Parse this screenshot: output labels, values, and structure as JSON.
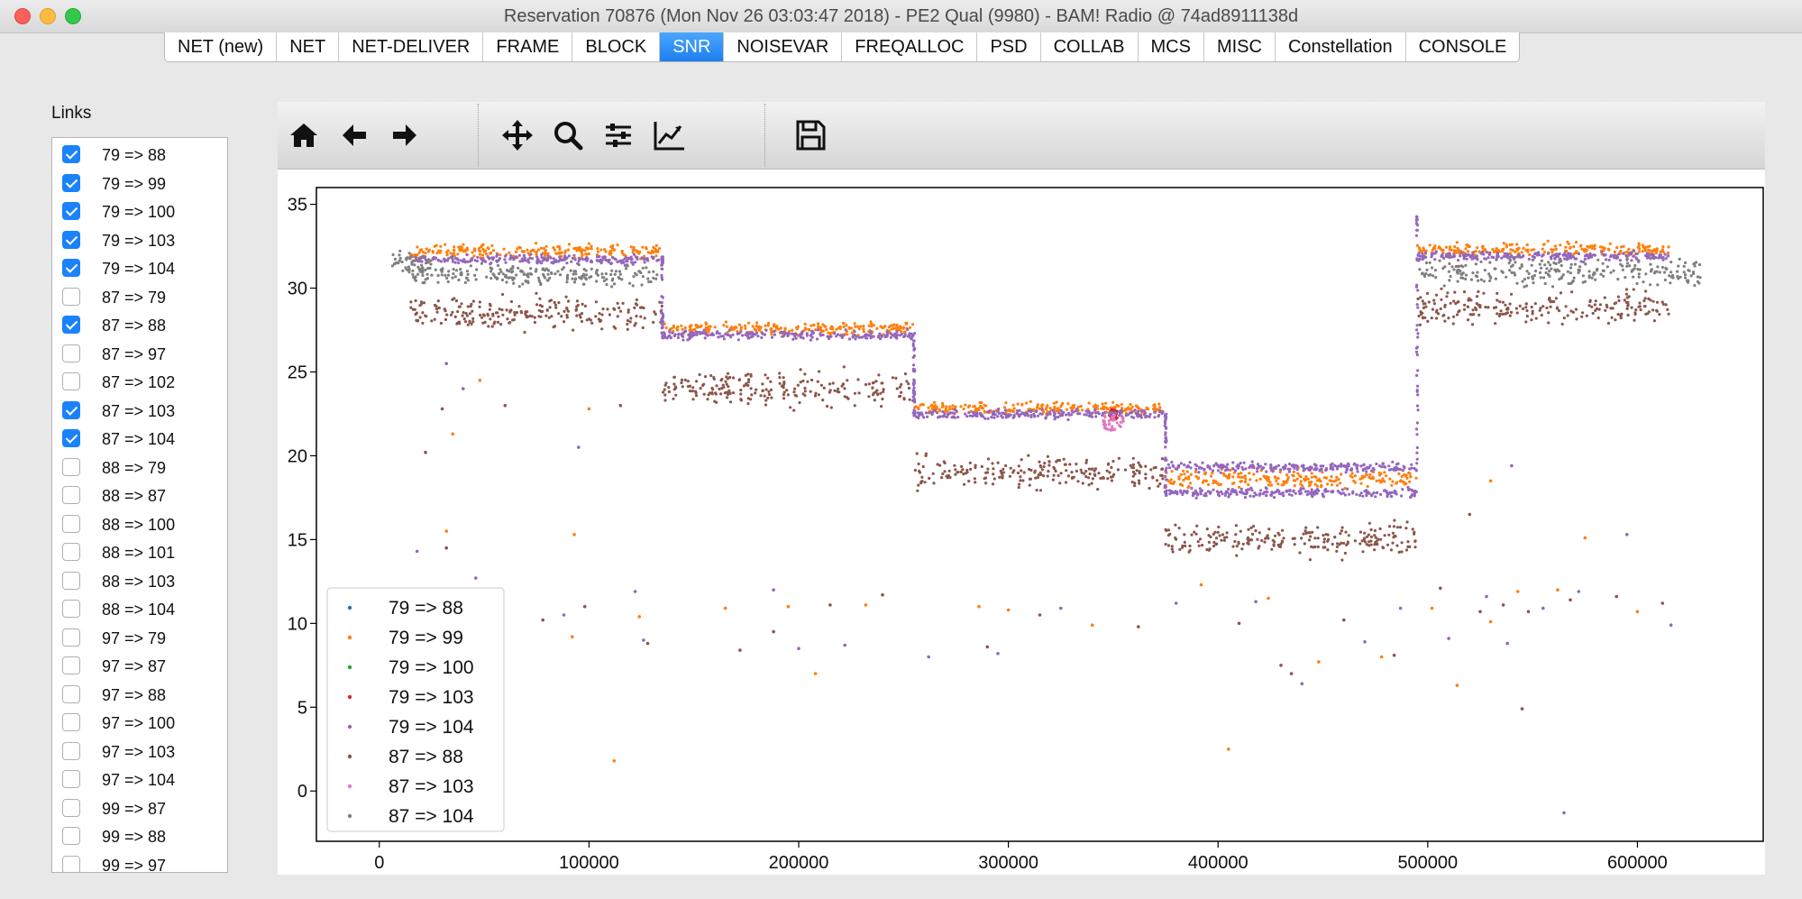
{
  "window": {
    "title": "Reservation 70876 (Mon Nov 26 03:03:47 2018) - PE2 Qual (9980) - BAM! Radio @ 74ad8911138d"
  },
  "tabs": [
    {
      "label": "NET (new)",
      "active": false
    },
    {
      "label": "NET",
      "active": false
    },
    {
      "label": "NET-DELIVER",
      "active": false
    },
    {
      "label": "FRAME",
      "active": false
    },
    {
      "label": "BLOCK",
      "active": false
    },
    {
      "label": "SNR",
      "active": true
    },
    {
      "label": "NOISEVAR",
      "active": false
    },
    {
      "label": "FREQALLOC",
      "active": false
    },
    {
      "label": "PSD",
      "active": false
    },
    {
      "label": "COLLAB",
      "active": false
    },
    {
      "label": "MCS",
      "active": false
    },
    {
      "label": "MISC",
      "active": false
    },
    {
      "label": "Constellation",
      "active": false
    },
    {
      "label": "CONSOLE",
      "active": false
    }
  ],
  "links_panel": {
    "label": "Links",
    "items": [
      {
        "label": "79 => 88",
        "checked": true
      },
      {
        "label": "79 => 99",
        "checked": true
      },
      {
        "label": "79 => 100",
        "checked": true
      },
      {
        "label": "79 => 103",
        "checked": true
      },
      {
        "label": "79 => 104",
        "checked": true
      },
      {
        "label": "87 => 79",
        "checked": false
      },
      {
        "label": "87 => 88",
        "checked": true
      },
      {
        "label": "87 => 97",
        "checked": false
      },
      {
        "label": "87 => 102",
        "checked": false
      },
      {
        "label": "87 => 103",
        "checked": true
      },
      {
        "label": "87 => 104",
        "checked": true
      },
      {
        "label": "88 => 79",
        "checked": false
      },
      {
        "label": "88 => 87",
        "checked": false
      },
      {
        "label": "88 => 100",
        "checked": false
      },
      {
        "label": "88 => 101",
        "checked": false
      },
      {
        "label": "88 => 103",
        "checked": false
      },
      {
        "label": "88 => 104",
        "checked": false
      },
      {
        "label": "97 => 79",
        "checked": false
      },
      {
        "label": "97 => 87",
        "checked": false
      },
      {
        "label": "97 => 88",
        "checked": false
      },
      {
        "label": "97 => 100",
        "checked": false
      },
      {
        "label": "97 => 103",
        "checked": false
      },
      {
        "label": "97 => 104",
        "checked": false
      },
      {
        "label": "99 => 87",
        "checked": false
      },
      {
        "label": "99 => 88",
        "checked": false
      },
      {
        "label": "99 => 97",
        "checked": false
      }
    ]
  },
  "toolbar": {
    "buttons": [
      "home-icon",
      "back-arrow-icon",
      "forward-arrow-icon",
      "pan-icon",
      "zoom-icon",
      "subplots-config-icon",
      "edit-axis-icon",
      "save-icon"
    ]
  },
  "chart_data": {
    "type": "scatter",
    "title": "",
    "xlabel": "",
    "ylabel": "",
    "xlim": [
      -30000,
      660000
    ],
    "ylim": [
      -3,
      36
    ],
    "xticks": [
      0,
      100000,
      200000,
      300000,
      400000,
      500000,
      600000
    ],
    "xtick_labels": [
      "0",
      "100000",
      "200000",
      "300000",
      "400000",
      "500000",
      "600000"
    ],
    "yticks": [
      0,
      5,
      10,
      15,
      20,
      25,
      30,
      35
    ],
    "ytick_labels": [
      "0",
      "5",
      "10",
      "15",
      "20",
      "25",
      "30",
      "35"
    ],
    "grid": false,
    "legend_position": "lower-left",
    "series": [
      {
        "name": "79 => 88",
        "color": "#1f77b4",
        "segments": []
      },
      {
        "name": "79 => 99",
        "color": "#ff7f0e",
        "segments": [
          {
            "x": [
              15000,
              135000
            ],
            "y": 32.2,
            "spread": 0.6
          },
          {
            "x": [
              135000,
              255000
            ],
            "y": 27.6,
            "spread": 0.5
          },
          {
            "x": [
              255000,
              375000
            ],
            "y": 22.8,
            "spread": 0.5
          },
          {
            "x": [
              375000,
              495000
            ],
            "y": 18.6,
            "spread": 0.8
          },
          {
            "x": [
              495000,
              615000
            ],
            "y": 32.3,
            "spread": 0.6
          }
        ]
      },
      {
        "name": "79 => 100",
        "color": "#2ca02c",
        "segments": []
      },
      {
        "name": "79 => 103",
        "color": "#d62728",
        "segments": [
          {
            "x": [
              348000,
              352000
            ],
            "y": 22.5,
            "spread": 0.6
          }
        ]
      },
      {
        "name": "79 => 104",
        "color": "#9467bd",
        "segments": [
          {
            "x": [
              15000,
              135000
            ],
            "y": 31.7,
            "spread": 0.4
          },
          {
            "x": [
              135000,
              255000
            ],
            "y": 27.2,
            "spread": 0.4
          },
          {
            "x": [
              255000,
              375000
            ],
            "y": 22.5,
            "spread": 0.4
          },
          {
            "x": [
              375000,
              495000
            ],
            "y": 19.3,
            "spread": 0.4
          },
          {
            "x": [
              375000,
              495000
            ],
            "y": 17.8,
            "spread": 0.4
          },
          {
            "x": [
              495000,
              615000
            ],
            "y": 31.9,
            "spread": 0.4
          }
        ]
      },
      {
        "name": "87 => 88",
        "color": "#8c564b",
        "segments": [
          {
            "x": [
              15000,
              135000
            ],
            "y": 28.5,
            "spread": 1.4
          },
          {
            "x": [
              135000,
              255000
            ],
            "y": 24.0,
            "spread": 1.5
          },
          {
            "x": [
              255000,
              375000
            ],
            "y": 19.0,
            "spread": 1.3
          },
          {
            "x": [
              375000,
              495000
            ],
            "y": 15.0,
            "spread": 1.3
          },
          {
            "x": [
              495000,
              615000
            ],
            "y": 28.8,
            "spread": 1.4
          }
        ]
      },
      {
        "name": "87 => 103",
        "color": "#e377c2",
        "segments": [
          {
            "x": [
              345000,
              355000
            ],
            "y": 22.0,
            "spread": 0.8
          }
        ]
      },
      {
        "name": "87 => 104",
        "color": "#7f7f7f",
        "segments": [
          {
            "x": [
              5000,
              25000
            ],
            "y": 31.5,
            "spread": 1.0
          },
          {
            "x": [
              15000,
              135000
            ],
            "y": 30.8,
            "spread": 1.0
          },
          {
            "x": [
              495000,
              630000
            ],
            "y": 31.0,
            "spread": 1.2
          }
        ]
      }
    ],
    "outliers": [
      [
        30000,
        22.8
      ],
      [
        32000,
        25.5
      ],
      [
        35000,
        21.3
      ],
      [
        22000,
        20.2
      ],
      [
        40000,
        24.0
      ],
      [
        48000,
        24.5
      ],
      [
        60000,
        23.0
      ],
      [
        95000,
        20.5
      ],
      [
        100000,
        22.8
      ],
      [
        115000,
        23.0
      ],
      [
        18000,
        14.3
      ],
      [
        32000,
        15.5
      ],
      [
        32000,
        14.5
      ],
      [
        46000,
        12.7
      ],
      [
        93000,
        15.3
      ],
      [
        78000,
        10.2
      ],
      [
        88000,
        10.5
      ],
      [
        92000,
        9.2
      ],
      [
        98000,
        11.0
      ],
      [
        122000,
        11.9
      ],
      [
        124000,
        10.4
      ],
      [
        128000,
        8.8
      ],
      [
        126000,
        9.0
      ],
      [
        165000,
        10.9
      ],
      [
        172000,
        8.4
      ],
      [
        188000,
        12.0
      ],
      [
        195000,
        11.0
      ],
      [
        188000,
        9.5
      ],
      [
        200000,
        8.5
      ],
      [
        208000,
        7.0
      ],
      [
        215000,
        11.1
      ],
      [
        222000,
        8.7
      ],
      [
        232000,
        11.1
      ],
      [
        240000,
        11.7
      ],
      [
        262000,
        8.0
      ],
      [
        286000,
        11.0
      ],
      [
        290000,
        8.6
      ],
      [
        295000,
        8.2
      ],
      [
        300000,
        10.8
      ],
      [
        315000,
        10.5
      ],
      [
        325000,
        10.9
      ],
      [
        340000,
        9.9
      ],
      [
        362000,
        9.8
      ],
      [
        380000,
        11.2
      ],
      [
        392000,
        12.3
      ],
      [
        410000,
        10.0
      ],
      [
        418000,
        11.3
      ],
      [
        424000,
        11.5
      ],
      [
        435000,
        7.0
      ],
      [
        440000,
        6.4
      ],
      [
        448000,
        7.7
      ],
      [
        460000,
        10.2
      ],
      [
        470000,
        8.9
      ],
      [
        478000,
        8.0
      ],
      [
        484000,
        8.1
      ],
      [
        487000,
        10.9
      ],
      [
        502000,
        10.9
      ],
      [
        506000,
        12.1
      ],
      [
        510000,
        9.1
      ],
      [
        514000,
        6.3
      ],
      [
        525000,
        10.7
      ],
      [
        528000,
        11.6
      ],
      [
        530000,
        10.1
      ],
      [
        536000,
        11.1
      ],
      [
        538000,
        8.8
      ],
      [
        543000,
        11.9
      ],
      [
        548000,
        10.7
      ],
      [
        555000,
        10.9
      ],
      [
        562000,
        12.0
      ],
      [
        568000,
        11.4
      ],
      [
        572000,
        11.9
      ],
      [
        575000,
        15.1
      ],
      [
        590000,
        11.6
      ],
      [
        595000,
        15.3
      ],
      [
        600000,
        10.7
      ],
      [
        612000,
        11.2
      ],
      [
        616000,
        9.9
      ],
      [
        405000,
        2.5
      ],
      [
        520000,
        16.5
      ],
      [
        540000,
        19.4
      ],
      [
        530000,
        18.5
      ],
      [
        545000,
        4.9
      ],
      [
        565000,
        -1.3
      ],
      [
        112000,
        1.8
      ],
      [
        430000,
        7.5
      ]
    ]
  }
}
